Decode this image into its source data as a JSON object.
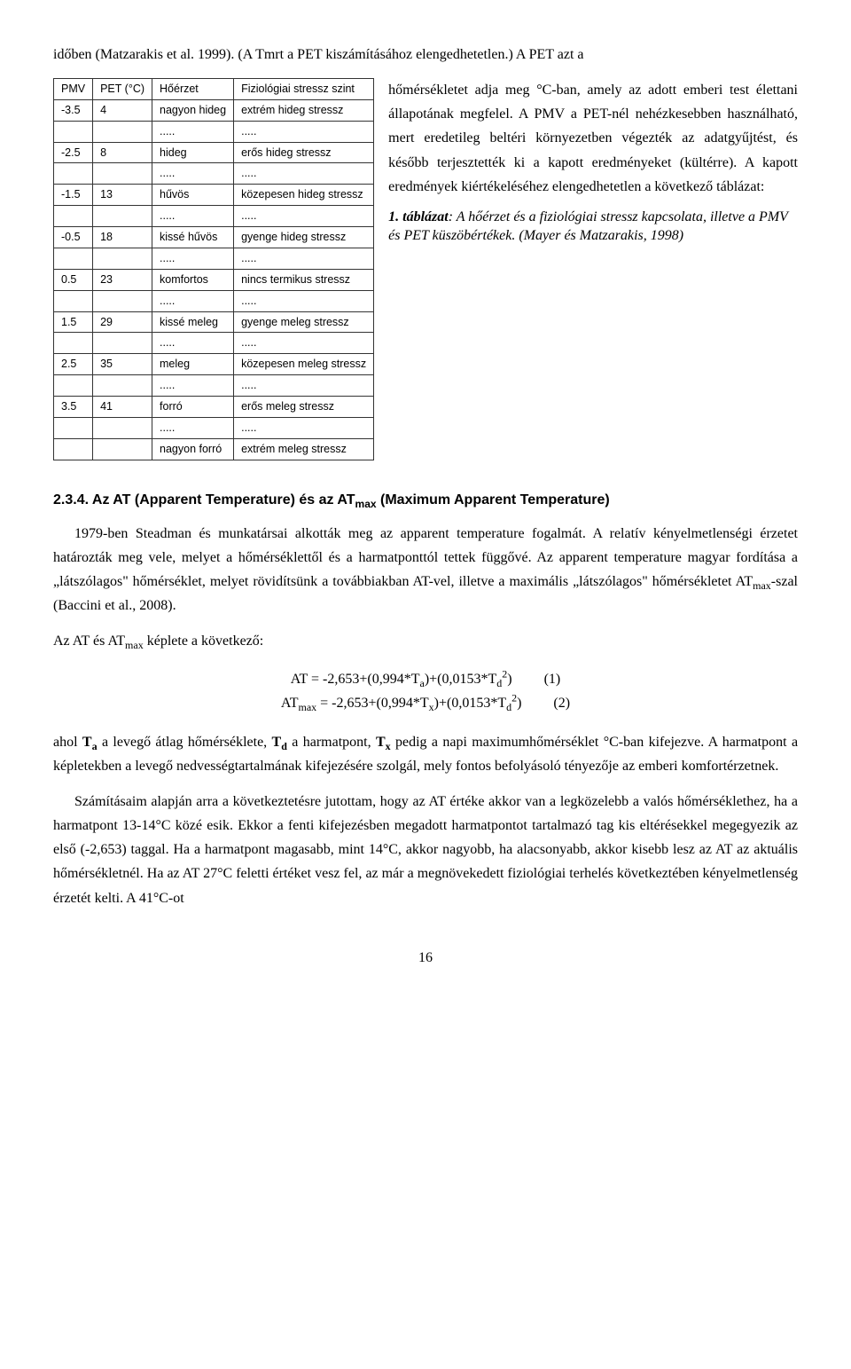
{
  "top_paragraph": "időben (Matzarakis et al. 1999). (A Tmrt a PET kiszámításához elengedhetetlen.) A PET azt a",
  "table": {
    "columns": [
      "PMV",
      "PET (°C)",
      "Hőérzet",
      "Fiziológiai stressz szint"
    ],
    "rows": [
      [
        "-3.5",
        "4",
        "nagyon hideg",
        "extrém hideg stressz"
      ],
      [
        "",
        "",
        ".....",
        "....."
      ],
      [
        "-2.5",
        "8",
        "hideg",
        "erős hideg stressz"
      ],
      [
        "",
        "",
        ".....",
        "....."
      ],
      [
        "-1.5",
        "13",
        "hűvös",
        "közepesen hideg stressz"
      ],
      [
        "",
        "",
        ".....",
        "....."
      ],
      [
        "-0.5",
        "18",
        "kissé hűvös",
        "gyenge hideg stressz"
      ],
      [
        "",
        "",
        ".....",
        "....."
      ],
      [
        "0.5",
        "23",
        "komfortos",
        "nincs termikus stressz"
      ],
      [
        "",
        "",
        ".....",
        "....."
      ],
      [
        "1.5",
        "29",
        "kissé meleg",
        "gyenge meleg stressz"
      ],
      [
        "",
        "",
        ".....",
        "....."
      ],
      [
        "2.5",
        "35",
        "meleg",
        "közepesen meleg stressz"
      ],
      [
        "",
        "",
        ".....",
        "....."
      ],
      [
        "3.5",
        "41",
        "forró",
        "erős meleg stressz"
      ],
      [
        "",
        "",
        ".....",
        "....."
      ],
      [
        "",
        "",
        "nagyon forró",
        "extrém meleg stressz"
      ]
    ]
  },
  "side_paragraph": "hőmérsékletet adja meg °C-ban, amely az adott emberi test élettani állapotának megfelel. A PMV a PET-nél nehézkesebben használható, mert eredetileg beltéri környezetben végezték az adatgyűjtést, és később terjesztették ki a kapott eredményeket (kültérre). A kapott eredmények kiértékeléséhez elengedhetetlen a következő táblázat:",
  "caption_bold": "1. táblázat",
  "caption_rest": ": A hőérzet és a fiziológiai stressz kapcsolata, illetve a PMV és PET küszöbértékek. (Mayer és Matzarakis, 1998)",
  "section_number": "2.3.4.",
  "section_title_a": "Az AT (Apparent Temperature) és az AT",
  "section_title_sub": "max",
  "section_title_b": " (Maximum Apparent Temperature)",
  "body1": "1979-ben Steadman és munkatársai alkották meg az apparent temperature fogalmát. A relatív kényelmetlenségi érzetet határozták meg vele, melyet a hőmérséklettől és a harmatponttól tettek függővé. Az apparent temperature magyar fordítása a „látszólagos\" hőmérséklet, melyet rövidítsünk a továbbiakban AT-vel, illetve a maximális „látszólagos\" hőmérsékletet AT",
  "body1_sub": "max",
  "body1_tail": "-szal (Baccini et al., 2008).",
  "body1b": "Az AT és AT",
  "body1b_sub": "max",
  "body1b_tail": " képlete a következő:",
  "formula1_lhs": "AT = -2,653+(0,994*T",
  "formula1_sub_a": "a",
  "formula1_mid": ")+(0,0153*T",
  "formula1_sub_d": "d",
  "formula1_sup": "2",
  "formula1_close": ")",
  "formula1_num": "(1)",
  "formula2_lhs": "AT",
  "formula2_sub_max": "max",
  "formula2_eq": " = -2,653+(0,994*T",
  "formula2_sub_x": "x",
  "formula2_mid": ")+(0,0153*T",
  "formula2_sub_d": "d",
  "formula2_sup": "2",
  "formula2_close": ")",
  "formula2_num": "(2)",
  "body2_pre": "ahol ",
  "body2_Ta": "T",
  "body2_Ta_sub": "a",
  "body2_a": " a levegő átlag hőmérséklete, ",
  "body2_Td": "T",
  "body2_Td_sub": "d",
  "body2_b": " a harmatpont, ",
  "body2_Tx": "T",
  "body2_Tx_sub": "x",
  "body2_c": " pedig a napi maximumhőmérséklet °C-ban kifejezve. A harmatpont a képletekben a levegő nedvességtartalmának kifejezésére szolgál, mely fontos befolyásoló tényezője az emberi komfortérzetnek.",
  "body3": "Számításaim alapján arra a következtetésre jutottam, hogy az AT értéke akkor van a legközelebb a valós hőmérséklethez, ha a harmatpont 13-14°C közé esik. Ekkor a fenti kifejezésben megadott harmatpontot tartalmazó tag kis eltérésekkel megegyezik az első (-2,653) taggal. Ha a harmatpont magasabb, mint 14°C, akkor nagyobb, ha alacsonyabb, akkor kisebb lesz az AT az aktuális hőmérsékletnél. Ha az AT 27°C feletti értéket vesz fel, az már a megnövekedett fiziológiai terhelés következtében kényelmetlenség érzetét kelti. A 41°C-ot",
  "page_number": "16"
}
